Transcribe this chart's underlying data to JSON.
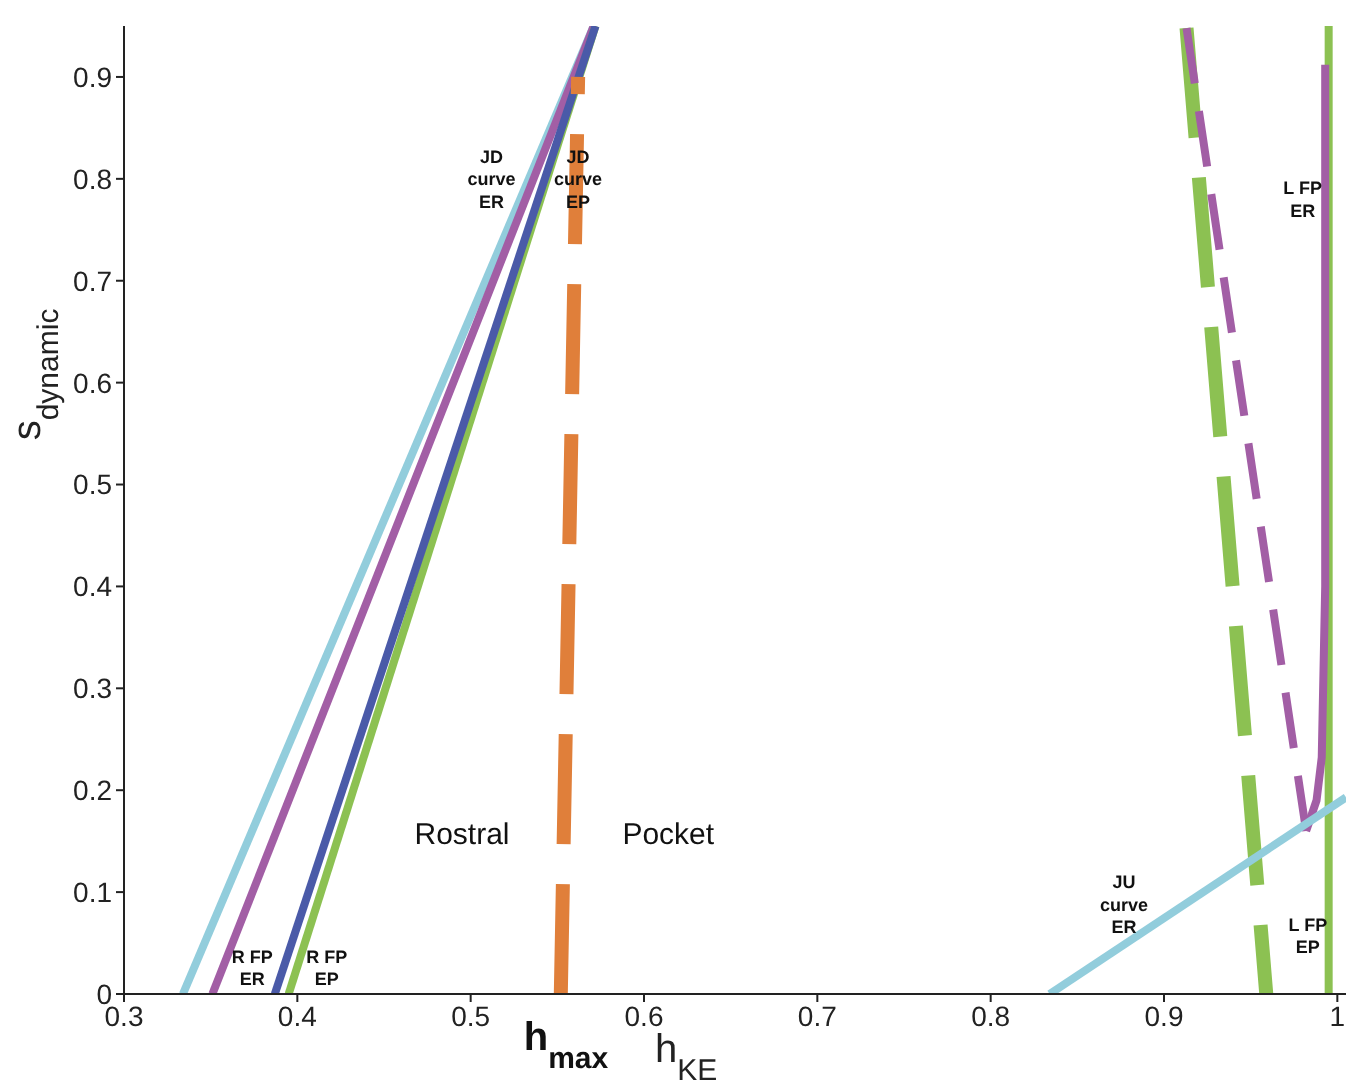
{
  "chart_data": {
    "type": "line",
    "xlabel": "h$_{KE}$",
    "ylabel": "s$_{dynamic}$",
    "xlim": [
      0.3,
      1.005
    ],
    "xticks": [
      0.3,
      0.4,
      0.5,
      0.6,
      0.7,
      0.8,
      0.9,
      {
        "value": 1,
        "label": "1"
      }
    ],
    "ylim": [
      0,
      0.95
    ],
    "yticks": [
      0,
      0.1,
      0.2,
      0.3,
      0.4,
      0.5,
      0.6,
      0.7,
      0.8,
      0.9
    ],
    "grid": false,
    "marker": "none",
    "series": [
      {
        "color": "#92cddc",
        "x": [
          0.334,
          0.571
        ],
        "values": [
          0,
          0.95
        ]
      },
      {
        "color": "#a25ea5",
        "x": [
          0.351,
          0.571
        ],
        "values": [
          0,
          0.95
        ]
      },
      {
        "color": "#8cc152",
        "x": [
          0.395,
          0.572
        ],
        "values": [
          0,
          0.95
        ]
      },
      {
        "color": "#4a5aa8",
        "x": [
          0.387,
          0.572
        ],
        "values": [
          0,
          0.95
        ]
      },
      {
        "color": "#e07f3a",
        "line_style": "dashed",
        "x": [
          0.552,
          0.562
        ],
        "values": [
          0,
          0.9
        ]
      },
      {
        "color": "#8cc152",
        "line_style": "dashed",
        "x": [
          0.913,
          0.959
        ],
        "values": [
          0.948,
          0
        ]
      },
      {
        "color": "#a25ea5",
        "line_style": "dashed",
        "x": [
          0.913,
          0.982
        ],
        "values": [
          0.948,
          0.16
        ]
      },
      {
        "color": "#8cc152",
        "x": [
          0.995,
          0.995
        ],
        "values": [
          0,
          0.95
        ]
      },
      {
        "color": "#a25ea5",
        "x": [
          0.982,
          0.988,
          0.991,
          0.993,
          0.993
        ],
        "values": [
          0.16,
          0.19,
          0.232,
          0.4,
          0.912
        ]
      },
      {
        "color": "#92cddc",
        "x": [
          0.834,
          1.005
        ],
        "values": [
          0,
          0.193
        ]
      }
    ],
    "annotations": [
      "JD\ncurve\nER",
      "JD\ncurve\nEP",
      "L FP\nER",
      "R FP\nER",
      "R FP\nEP",
      "JU\ncurve\nER",
      "L FP\nEP",
      "Rostral",
      "Pocket",
      "h$_{max}$"
    ]
  }
}
